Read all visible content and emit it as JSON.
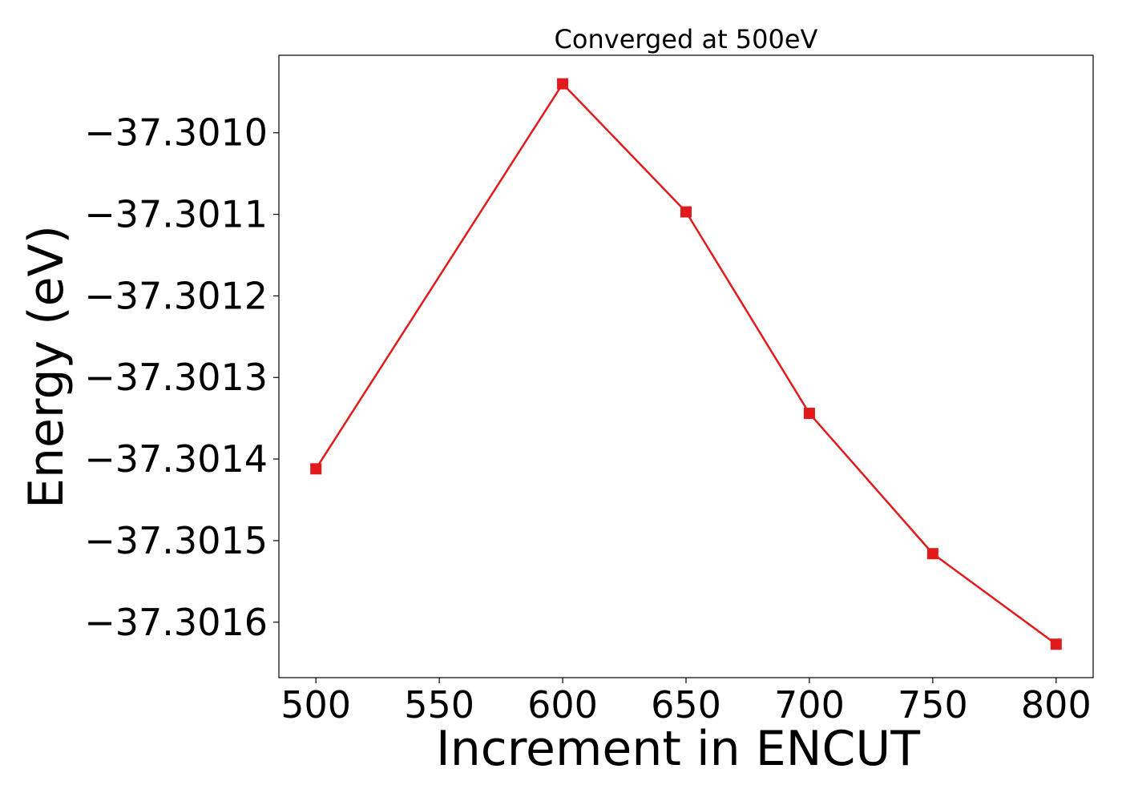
{
  "chart_data": {
    "type": "line",
    "title": "Converged at 500eV",
    "xlabel": "Increment in ENCUT",
    "ylabel": "Energy (eV)",
    "x": [
      500,
      600,
      650,
      700,
      750,
      800
    ],
    "series": [
      {
        "values": [
          -37.301412,
          -37.30094,
          -37.301097,
          -37.301344,
          -37.301516,
          -37.301627
        ],
        "color": "#e31a1c",
        "marker": "square"
      }
    ],
    "xlim": [
      485,
      815
    ],
    "ylim": [
      -37.301668,
      -37.300905
    ],
    "xticks": [
      500,
      550,
      600,
      650,
      700,
      750,
      800
    ],
    "xtick_labels": [
      "500",
      "550",
      "600",
      "650",
      "700",
      "750",
      "800"
    ],
    "yticks": [
      -37.301,
      -37.3011,
      -37.3012,
      -37.3013,
      -37.3014,
      -37.3015,
      -37.3016
    ],
    "ytick_labels": [
      "−37.3010",
      "−37.3011",
      "−37.3012",
      "−37.3013",
      "−37.3014",
      "−37.3015",
      "−37.3016"
    ],
    "grid": false,
    "legend": "none"
  }
}
